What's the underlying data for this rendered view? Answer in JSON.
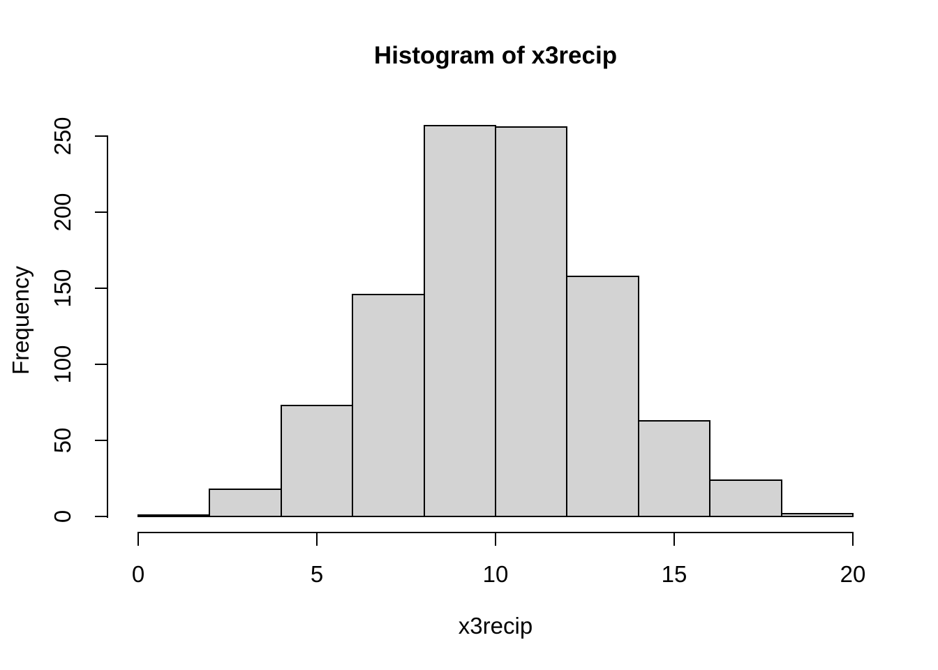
{
  "figure": {
    "background": "#ffffff",
    "text_color": "#000000"
  },
  "chart_data": {
    "type": "bar",
    "subtype": "histogram",
    "title": "Histogram of x3recip",
    "xlabel": "x3recip",
    "ylabel": "Frequency",
    "bin_edges": [
      0,
      2,
      4,
      6,
      8,
      10,
      12,
      14,
      16,
      18,
      20
    ],
    "counts": [
      1,
      18,
      73,
      146,
      257,
      256,
      158,
      63,
      24,
      2
    ],
    "x_ticks": [
      0,
      5,
      10,
      15,
      20
    ],
    "y_ticks": [
      0,
      50,
      100,
      150,
      200,
      250
    ],
    "xlim": [
      0,
      20
    ],
    "ylim": [
      0,
      250
    ],
    "grid": false,
    "legend": "none",
    "bar_fill": "#d3d3d3",
    "bar_border": "#000000",
    "axis_color": "#000000"
  }
}
